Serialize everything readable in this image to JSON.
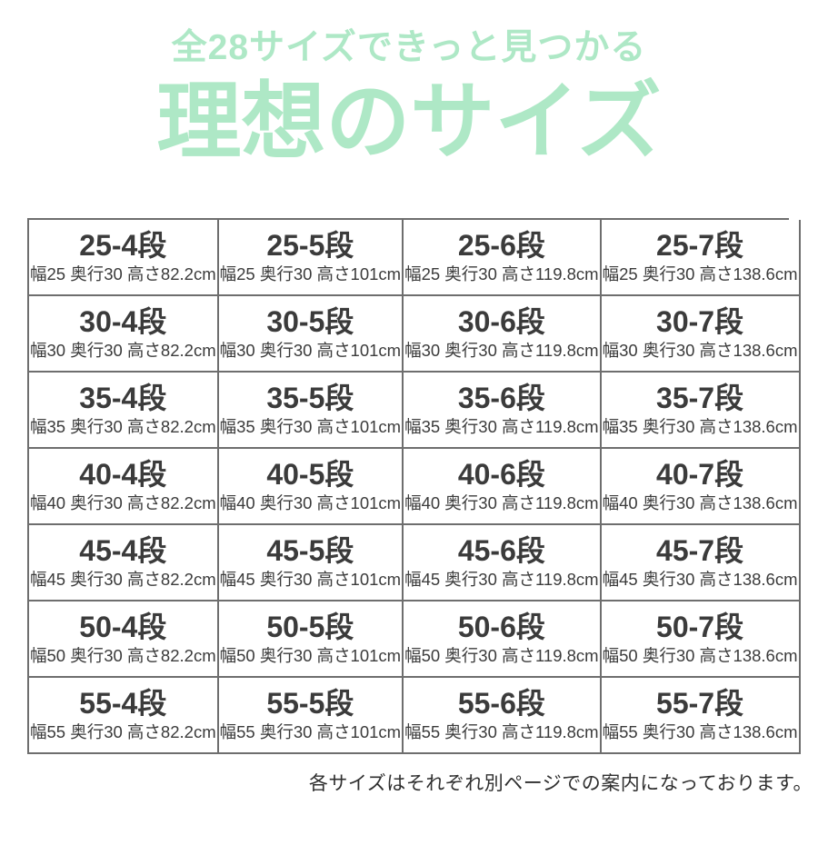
{
  "page": {
    "background": "#ffffff",
    "accent_color": "#aee8c6",
    "text_color": "#3b3b3b",
    "border_color": "#6e6e6e"
  },
  "header": {
    "subtitle": "全28サイズできっと見つかる",
    "title": "理想のサイズ"
  },
  "size_table": {
    "columns": 4,
    "rows": [
      {
        "cells": [
          {
            "name": "25-4段",
            "spec": "幅25 奥行30 高さ82.2cm"
          },
          {
            "name": "25-5段",
            "spec": "幅25 奥行30 高さ101cm"
          },
          {
            "name": "25-6段",
            "spec": "幅25 奥行30 高さ119.8cm"
          },
          {
            "name": "25-7段",
            "spec": "幅25 奥行30 高さ138.6cm"
          }
        ]
      },
      {
        "cells": [
          {
            "name": "30-4段",
            "spec": "幅30 奥行30 高さ82.2cm"
          },
          {
            "name": "30-5段",
            "spec": "幅30 奥行30 高さ101cm"
          },
          {
            "name": "30-6段",
            "spec": "幅30 奥行30 高さ119.8cm"
          },
          {
            "name": "30-7段",
            "spec": "幅30 奥行30 高さ138.6cm"
          }
        ]
      },
      {
        "cells": [
          {
            "name": "35-4段",
            "spec": "幅35 奥行30 高さ82.2cm"
          },
          {
            "name": "35-5段",
            "spec": "幅35 奥行30 高さ101cm"
          },
          {
            "name": "35-6段",
            "spec": "幅35 奥行30 高さ119.8cm"
          },
          {
            "name": "35-7段",
            "spec": "幅35 奥行30 高さ138.6cm"
          }
        ]
      },
      {
        "cells": [
          {
            "name": "40-4段",
            "spec": "幅40 奥行30 高さ82.2cm"
          },
          {
            "name": "40-5段",
            "spec": "幅40 奥行30 高さ101cm"
          },
          {
            "name": "40-6段",
            "spec": "幅40 奥行30 高さ119.8cm"
          },
          {
            "name": "40-7段",
            "spec": "幅40 奥行30 高さ138.6cm"
          }
        ]
      },
      {
        "cells": [
          {
            "name": "45-4段",
            "spec": "幅45 奥行30 高さ82.2cm"
          },
          {
            "name": "45-5段",
            "spec": "幅45 奥行30 高さ101cm"
          },
          {
            "name": "45-6段",
            "spec": "幅45 奥行30 高さ119.8cm"
          },
          {
            "name": "45-7段",
            "spec": "幅45 奥行30 高さ138.6cm"
          }
        ]
      },
      {
        "cells": [
          {
            "name": "50-4段",
            "spec": "幅50 奥行30 高さ82.2cm"
          },
          {
            "name": "50-5段",
            "spec": "幅50 奥行30 高さ101cm"
          },
          {
            "name": "50-6段",
            "spec": "幅50 奥行30 高さ119.8cm"
          },
          {
            "name": "50-7段",
            "spec": "幅50 奥行30 高さ138.6cm"
          }
        ]
      },
      {
        "cells": [
          {
            "name": "55-4段",
            "spec": "幅55 奥行30 高さ82.2cm"
          },
          {
            "name": "55-5段",
            "spec": "幅55 奥行30 高さ101cm"
          },
          {
            "name": "55-6段",
            "spec": "幅55 奥行30 高さ119.8cm"
          },
          {
            "name": "55-7段",
            "spec": "幅55 奥行30 高さ138.6cm"
          }
        ]
      }
    ]
  },
  "footer": {
    "note": "各サイズはそれぞれ別ページでの案内になっております。"
  }
}
